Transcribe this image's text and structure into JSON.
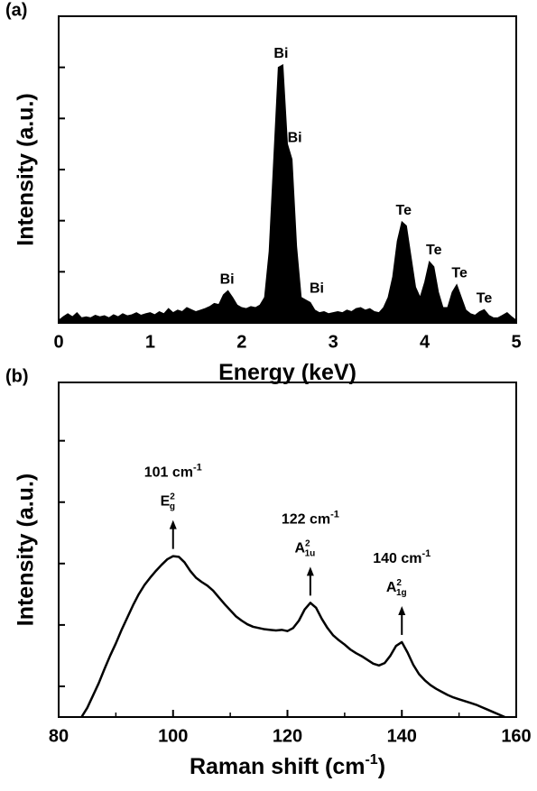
{
  "chart_data": [
    {
      "type": "area",
      "panel_label": "(a)",
      "x_label": "Energy (keV)",
      "y_label": "Intensity (a.u.)",
      "color": "#000000",
      "x": [
        0,
        0.05,
        0.1,
        0.15,
        0.2,
        0.25,
        0.3,
        0.35,
        0.4,
        0.45,
        0.5,
        0.55,
        0.6,
        0.65,
        0.7,
        0.75,
        0.8,
        0.85,
        0.9,
        0.95,
        1,
        1.05,
        1.1,
        1.15,
        1.2,
        1.25,
        1.3,
        1.35,
        1.4,
        1.45,
        1.5,
        1.55,
        1.6,
        1.65,
        1.7,
        1.75,
        1.8,
        1.85,
        1.9,
        1.95,
        2,
        2.05,
        2.1,
        2.15,
        2.2,
        2.25,
        2.3,
        2.35,
        2.4,
        2.45,
        2.5,
        2.55,
        2.6,
        2.65,
        2.7,
        2.75,
        2.8,
        2.85,
        2.9,
        2.95,
        3,
        3.05,
        3.1,
        3.15,
        3.2,
        3.25,
        3.3,
        3.35,
        3.4,
        3.45,
        3.5,
        3.55,
        3.6,
        3.65,
        3.7,
        3.75,
        3.8,
        3.85,
        3.9,
        3.95,
        4,
        4.05,
        4.1,
        4.15,
        4.2,
        4.25,
        4.3,
        4.35,
        4.4,
        4.45,
        4.5,
        4.55,
        4.6,
        4.65,
        4.7,
        4.75,
        4.8,
        4.85,
        4.9,
        4.95,
        5
      ],
      "values": [
        0.05,
        0.12,
        0.18,
        0.12,
        0.2,
        0.1,
        0.12,
        0.1,
        0.15,
        0.12,
        0.14,
        0.1,
        0.16,
        0.12,
        0.18,
        0.14,
        0.16,
        0.2,
        0.15,
        0.18,
        0.2,
        0.16,
        0.22,
        0.18,
        0.28,
        0.2,
        0.25,
        0.22,
        0.3,
        0.26,
        0.22,
        0.25,
        0.28,
        0.32,
        0.38,
        0.36,
        0.55,
        0.63,
        0.5,
        0.35,
        0.3,
        0.28,
        0.32,
        0.3,
        0.35,
        0.5,
        1.4,
        3.2,
        5.0,
        5.05,
        3.5,
        3.2,
        1.5,
        0.5,
        0.45,
        0.4,
        0.25,
        0.2,
        0.22,
        0.18,
        0.2,
        0.22,
        0.2,
        0.25,
        0.22,
        0.28,
        0.3,
        0.25,
        0.28,
        0.22,
        0.2,
        0.3,
        0.5,
        0.9,
        1.6,
        1.98,
        1.9,
        1.3,
        0.7,
        0.5,
        0.8,
        1.2,
        1.1,
        0.6,
        0.3,
        0.3,
        0.6,
        0.75,
        0.5,
        0.25,
        0.18,
        0.15,
        0.22,
        0.26,
        0.15,
        0.1,
        0.1,
        0.15,
        0.2,
        0.12,
        0.05
      ],
      "xlim": [
        0,
        5
      ],
      "xticks": [
        0,
        1,
        2,
        3,
        4,
        5
      ],
      "ylim": [
        0,
        6
      ],
      "yticks": [
        1,
        2,
        3,
        4,
        5
      ],
      "annotations": [
        {
          "text": "Bi",
          "x": 2.43,
          "y": 5.05
        },
        {
          "text": "Bi",
          "x": 2.58,
          "y": 3.4
        },
        {
          "text": "Bi",
          "x": 1.84,
          "y": 0.63
        },
        {
          "text": "Bi",
          "x": 2.82,
          "y": 0.45
        },
        {
          "text": "Te",
          "x": 3.77,
          "y": 1.98
        },
        {
          "text": "Te",
          "x": 4.1,
          "y": 1.2
        },
        {
          "text": "Te",
          "x": 4.38,
          "y": 0.75
        },
        {
          "text": "Te",
          "x": 4.65,
          "y": 0.26
        }
      ]
    },
    {
      "type": "line",
      "panel_label": "(b)",
      "x_label": "Raman shift (cm",
      "x_label_sup": "-1",
      "x_label_end": ")",
      "y_label": "Intensity (a.u.)",
      "color": "#000000",
      "x": [
        84,
        85,
        86,
        87,
        88,
        89,
        90,
        91,
        92,
        93,
        94,
        95,
        96,
        97,
        98,
        99,
        100,
        101,
        102,
        103,
        104,
        105,
        106,
        107,
        108,
        109,
        110,
        111,
        112,
        113,
        114,
        115,
        116,
        117,
        118,
        119,
        120,
        121,
        122,
        123,
        124,
        125,
        126,
        127,
        128,
        129,
        130,
        131,
        132,
        133,
        134,
        135,
        136,
        137,
        138,
        139,
        140,
        141,
        142,
        143,
        144,
        145,
        146,
        147,
        148,
        149,
        150,
        151,
        152,
        153,
        154,
        155,
        156,
        157,
        158
      ],
      "values": [
        0,
        0.15,
        0.35,
        0.55,
        0.78,
        1.0,
        1.2,
        1.42,
        1.62,
        1.82,
        2.0,
        2.15,
        2.27,
        2.38,
        2.48,
        2.57,
        2.62,
        2.61,
        2.52,
        2.38,
        2.27,
        2.2,
        2.14,
        2.06,
        1.95,
        1.84,
        1.74,
        1.64,
        1.57,
        1.51,
        1.47,
        1.45,
        1.43,
        1.42,
        1.41,
        1.42,
        1.4,
        1.45,
        1.57,
        1.75,
        1.86,
        1.78,
        1.6,
        1.45,
        1.33,
        1.25,
        1.18,
        1.1,
        1.04,
        0.99,
        0.93,
        0.87,
        0.84,
        0.88,
        1.0,
        1.16,
        1.22,
        1.05,
        0.85,
        0.7,
        0.6,
        0.52,
        0.46,
        0.41,
        0.36,
        0.32,
        0.29,
        0.26,
        0.23,
        0.2,
        0.16,
        0.12,
        0.08,
        0.04,
        0
      ],
      "xlim": [
        80,
        160
      ],
      "xticks": [
        80,
        100,
        120,
        140,
        160
      ],
      "ylim": [
        0,
        5.45
      ],
      "yticks": [
        0.5,
        1.5,
        2.5,
        3.5,
        4.5
      ],
      "annotations": [
        {
          "label": "101 cm",
          "label_sup": "-1",
          "mode": "E",
          "mode_sup": "2",
          "mode_sub": "g",
          "x": 100,
          "y": 2.62
        },
        {
          "label": "122 cm",
          "label_sup": "-1",
          "mode": "A",
          "mode_sup": "2",
          "mode_sub": "1u",
          "x": 124,
          "y": 1.86
        },
        {
          "label": "140 cm",
          "label_sup": "-1",
          "mode": "A",
          "mode_sup": "2",
          "mode_sub": "1g",
          "x": 140,
          "y": 1.22
        }
      ]
    }
  ]
}
